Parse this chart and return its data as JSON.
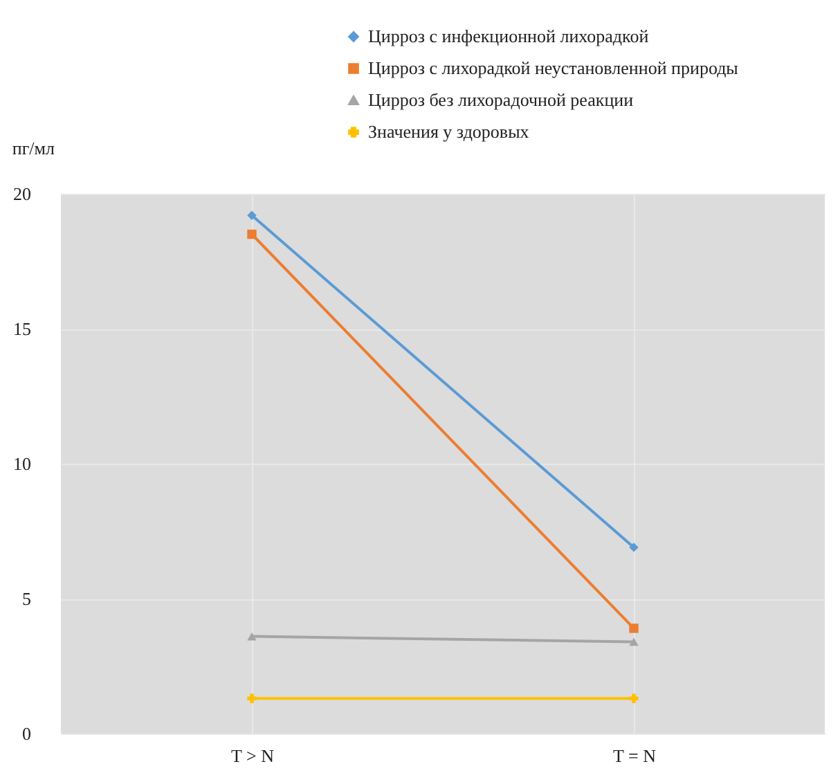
{
  "chart_data": {
    "type": "line",
    "ylabel": "пг/мл",
    "categories": [
      "T > N",
      "T = N"
    ],
    "ylim": [
      0,
      20
    ],
    "yticks": [
      0,
      5,
      10,
      15,
      20
    ],
    "grid": true,
    "legend": "top",
    "series": [
      {
        "name": "Цирроз с инфекционной лихорадкой",
        "color": "#5b9bd5",
        "marker": "diamond",
        "values": [
          19.2,
          6.9
        ]
      },
      {
        "name": "Цирроз с лихорадкой неустановленной природы",
        "color": "#ed7d31",
        "marker": "square",
        "values": [
          18.5,
          3.9
        ]
      },
      {
        "name": "Цирроз без лихорадочной реакции",
        "color": "#a5a5a5",
        "marker": "triangle",
        "values": [
          3.6,
          3.4
        ]
      },
      {
        "name": "Значения у здоровых",
        "color": "#ffc000",
        "marker": "cross",
        "values": [
          1.3,
          1.3
        ]
      }
    ]
  }
}
